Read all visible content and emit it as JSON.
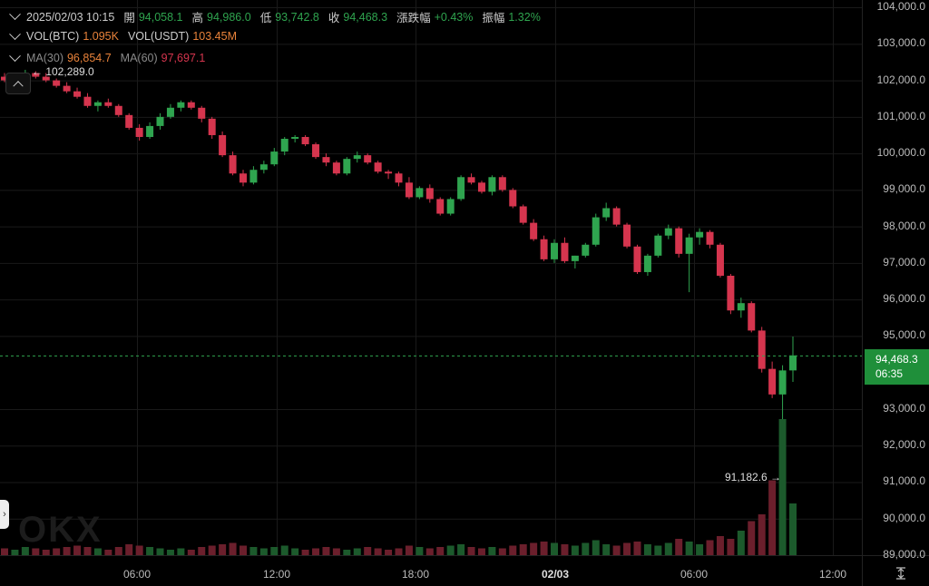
{
  "header": {
    "row1": {
      "datetime": "2025/02/03 10:15",
      "open_label": "開",
      "open": "94,058.1",
      "high_label": "高",
      "high": "94,986.0",
      "low_label": "低",
      "low": "93,742.8",
      "close_label": "收",
      "close": "94,468.3",
      "change_label": "漲跌幅",
      "change": "+0.43%",
      "amp_label": "振幅",
      "amp": "1.32%"
    },
    "row2": {
      "vol_btc_label": "VOL(BTC)",
      "vol_btc": "1.095K",
      "vol_usdt_label": "VOL(USDT)",
      "vol_usdt": "103.45M"
    },
    "row3": {
      "ma30_label": "MA(30)",
      "ma30": "96,854.7",
      "ma60_label": "MA(60)",
      "ma60": "97,697.1"
    }
  },
  "annotations": {
    "high_marker": "← 102,289.0",
    "low_marker": "91,182.6 →"
  },
  "price_tag": {
    "price": "94,468.3",
    "countdown": "06:35"
  },
  "colors": {
    "up": "#2fa44f",
    "down": "#d5354e",
    "background": "#000000",
    "grid": "#1a1a1a",
    "current_line": "#2fa44f"
  },
  "icons": {
    "collapse": "chevron-up-icon",
    "side_handle": "chevron-right-icon",
    "tool": "vertical-fit-icon"
  },
  "logo_text": "OKX",
  "chart_data": {
    "type": "candlestick",
    "y_ticks": [
      "104,000.0",
      "103,000.0",
      "102,000.0",
      "101,000.0",
      "100,000.0",
      "99,000.0",
      "98,000.0",
      "97,000.0",
      "96,000.0",
      "95,000.0",
      "93,000.0",
      "92,000.0",
      "91,000.0",
      "90,000.0",
      "89,000.0"
    ],
    "x_ticks": [
      "06:00",
      "12:00",
      "18:00",
      "02/03",
      "06:00",
      "12:00"
    ],
    "ylim": [
      89000,
      104200
    ],
    "current_price": 94468.3,
    "highest": 102289.0,
    "lowest": 91182.6,
    "candles": [
      [
        102100,
        102200,
        101950,
        102000
      ],
      [
        102000,
        102150,
        101900,
        102100
      ],
      [
        102100,
        102289,
        102000,
        102200
      ],
      [
        102200,
        102250,
        102050,
        102100
      ],
      [
        102100,
        102200,
        101950,
        102000
      ],
      [
        102000,
        102050,
        101800,
        101850
      ],
      [
        101850,
        101950,
        101650,
        101700
      ],
      [
        101700,
        101800,
        101500,
        101550
      ],
      [
        101550,
        101650,
        101250,
        101300
      ],
      [
        101300,
        101450,
        101150,
        101400
      ],
      [
        101400,
        101500,
        101250,
        101300
      ],
      [
        101300,
        101350,
        101000,
        101050
      ],
      [
        101050,
        101100,
        100650,
        100700
      ],
      [
        100700,
        100800,
        100350,
        100450
      ],
      [
        100450,
        100850,
        100400,
        100750
      ],
      [
        100750,
        101100,
        100650,
        101000
      ],
      [
        101000,
        101350,
        100950,
        101250
      ],
      [
        101250,
        101450,
        101150,
        101400
      ],
      [
        101400,
        101450,
        101200,
        101250
      ],
      [
        101250,
        101300,
        100850,
        100950
      ],
      [
        100950,
        101000,
        100400,
        100500
      ],
      [
        100500,
        100600,
        99900,
        99950
      ],
      [
        99950,
        100050,
        99400,
        99450
      ],
      [
        99450,
        99550,
        99100,
        99200
      ],
      [
        99200,
        99650,
        99150,
        99550
      ],
      [
        99550,
        99800,
        99450,
        99700
      ],
      [
        99700,
        100150,
        99650,
        100050
      ],
      [
        100050,
        100450,
        99950,
        100400
      ],
      [
        100400,
        100500,
        100300,
        100450
      ],
      [
        100450,
        100500,
        100200,
        100250
      ],
      [
        100250,
        100300,
        99850,
        99900
      ],
      [
        99900,
        100000,
        99650,
        99750
      ],
      [
        99750,
        99800,
        99400,
        99450
      ],
      [
        99450,
        99900,
        99400,
        99850
      ],
      [
        99850,
        100050,
        99750,
        99950
      ],
      [
        99950,
        100000,
        99700,
        99750
      ],
      [
        99750,
        99800,
        99450,
        99500
      ],
      [
        99500,
        99550,
        99300,
        99450
      ],
      [
        99450,
        99500,
        99100,
        99200
      ],
      [
        99200,
        99350,
        98750,
        98800
      ],
      [
        98800,
        99100,
        98750,
        99050
      ],
      [
        99050,
        99150,
        98650,
        98750
      ],
      [
        98750,
        98800,
        98300,
        98350
      ],
      [
        98350,
        98800,
        98300,
        98750
      ],
      [
        98750,
        99400,
        98700,
        99350
      ],
      [
        99350,
        99450,
        99150,
        99200
      ],
      [
        99200,
        99250,
        98900,
        98950
      ],
      [
        98950,
        99400,
        98850,
        99350
      ],
      [
        99350,
        99400,
        98950,
        99000
      ],
      [
        99000,
        99050,
        98500,
        98550
      ],
      [
        98550,
        98600,
        98050,
        98100
      ],
      [
        98100,
        98200,
        97600,
        97650
      ],
      [
        97650,
        97750,
        97050,
        97100
      ],
      [
        97100,
        97650,
        97000,
        97550
      ],
      [
        97550,
        97700,
        97000,
        97050
      ],
      [
        97050,
        97200,
        96850,
        97200
      ],
      [
        97200,
        97550,
        97150,
        97500
      ],
      [
        97500,
        98350,
        97450,
        98250
      ],
      [
        98250,
        98650,
        98150,
        98500
      ],
      [
        98500,
        98550,
        98000,
        98050
      ],
      [
        98050,
        98100,
        97400,
        97450
      ],
      [
        97450,
        97500,
        96700,
        96750
      ],
      [
        96750,
        97250,
        96650,
        97200
      ],
      [
        97200,
        97800,
        97150,
        97750
      ],
      [
        97750,
        98050,
        97650,
        97950
      ],
      [
        97950,
        98000,
        97150,
        97250
      ],
      [
        97250,
        97800,
        96200,
        97700
      ],
      [
        97700,
        97950,
        97500,
        97850
      ],
      [
        97850,
        97900,
        97400,
        97500
      ],
      [
        97500,
        97550,
        96600,
        96650
      ],
      [
        96650,
        96700,
        95600,
        95700
      ],
      [
        95700,
        96050,
        95500,
        95900
      ],
      [
        95900,
        95950,
        95100,
        95150
      ],
      [
        95150,
        95250,
        94000,
        94100
      ],
      [
        94100,
        94300,
        93300,
        93400
      ],
      [
        93400,
        94200,
        91182.6,
        94058.1
      ],
      [
        94058.1,
        94986.0,
        93742.8,
        94468.3
      ]
    ],
    "volumes": [
      5,
      4,
      6,
      5,
      4,
      5,
      6,
      7,
      6,
      5,
      4,
      6,
      8,
      7,
      6,
      5,
      4,
      5,
      4,
      6,
      7,
      8,
      9,
      7,
      6,
      5,
      6,
      7,
      5,
      4,
      5,
      6,
      5,
      4,
      5,
      6,
      5,
      4,
      5,
      7,
      6,
      5,
      6,
      7,
      8,
      6,
      5,
      6,
      5,
      7,
      8,
      9,
      10,
      9,
      8,
      7,
      9,
      11,
      8,
      7,
      9,
      10,
      8,
      7,
      9,
      12,
      10,
      8,
      11,
      14,
      12,
      18,
      25,
      30,
      55,
      100,
      38
    ]
  }
}
